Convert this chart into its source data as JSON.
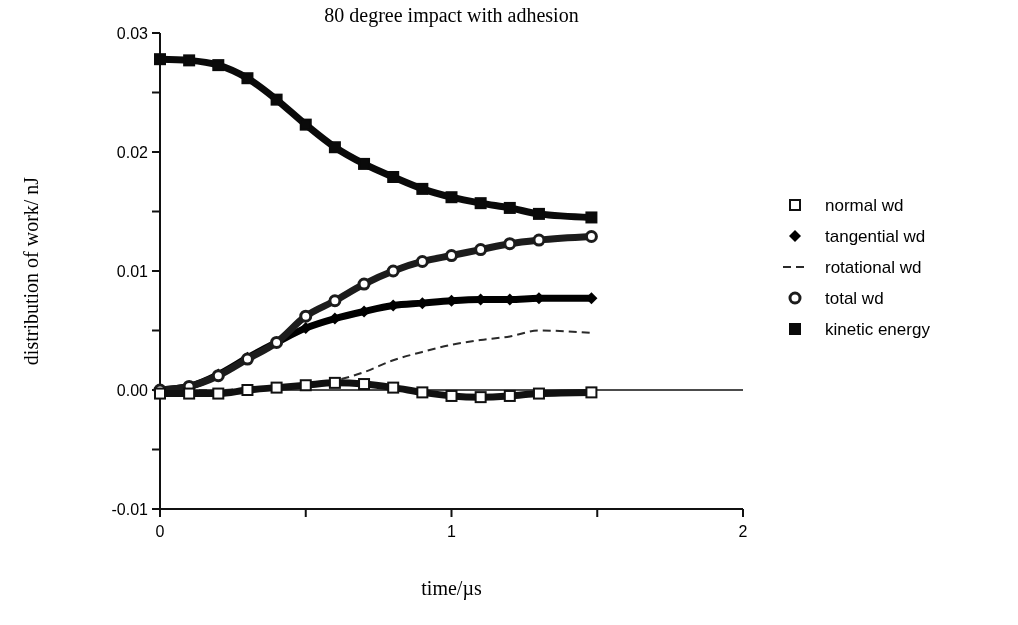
{
  "chart_data": {
    "type": "line",
    "title": "80 degree impact with adhesion",
    "xlabel": "time/µs",
    "ylabel": "distribution of work/ nJ",
    "x": [
      0,
      0.1,
      0.2,
      0.3,
      0.4,
      0.5,
      0.6,
      0.7,
      0.8,
      0.9,
      1.0,
      1.1,
      1.2,
      1.3,
      1.48
    ],
    "series": [
      {
        "name": "normal wd",
        "color": "#111111",
        "marker": "square",
        "values": [
          -0.0003,
          -0.0003,
          -0.0003,
          0,
          0.0002,
          0.0004,
          0.0006,
          0.0005,
          0.0002,
          -0.0002,
          -0.0005,
          -0.0006,
          -0.0005,
          -0.0003,
          -0.0002
        ]
      },
      {
        "name": "tangential wd",
        "color": "#000000",
        "marker": "diamond",
        "values": [
          0,
          0.0003,
          0.0013,
          0.0027,
          0.004,
          0.0052,
          0.006,
          0.0066,
          0.0071,
          0.0073,
          0.0075,
          0.0076,
          0.0076,
          0.0077,
          0.0077
        ]
      },
      {
        "name": "rotational wd",
        "color": "#2a2a2a",
        "marker": "none",
        "line_style": "dashed",
        "values": [
          0,
          0,
          0,
          0.0001,
          0.0003,
          0.0005,
          0.0008,
          0.0015,
          0.0025,
          0.0032,
          0.0038,
          0.0042,
          0.0045,
          0.005,
          0.0048
        ]
      },
      {
        "name": "total wd",
        "color": "#1c1c1c",
        "marker": "circle",
        "values": [
          0,
          0.0003,
          0.0012,
          0.0026,
          0.004,
          0.0062,
          0.0075,
          0.0089,
          0.01,
          0.0108,
          0.0113,
          0.0118,
          0.0123,
          0.0126,
          0.0129
        ]
      },
      {
        "name": "kinetic energy",
        "color": "#0a0a0a",
        "marker": "square",
        "values": [
          0.0278,
          0.0277,
          0.0273,
          0.0262,
          0.0244,
          0.0223,
          0.0204,
          0.019,
          0.0179,
          0.0169,
          0.0162,
          0.0157,
          0.0153,
          0.0148,
          0.0145
        ]
      }
    ],
    "xlim": [
      0,
      2
    ],
    "ylim": [
      -0.01,
      0.03
    ],
    "xticks": [
      0,
      {
        "value": 0.5,
        "label": null
      },
      1,
      {
        "value": 1.5,
        "label": null
      },
      2
    ],
    "yticks": [
      -0.01,
      {
        "value": -0.005,
        "label": null
      },
      "0.00",
      {
        "value": 0.005,
        "label": null
      },
      0.01,
      {
        "value": 0.015,
        "label": null
      },
      0.02,
      {
        "value": 0.025,
        "label": null
      },
      0.03
    ],
    "ref_lines": [
      {
        "axis": "y",
        "value": 0,
        "color": "#111111"
      }
    ],
    "legend": "right",
    "grid": false
  }
}
